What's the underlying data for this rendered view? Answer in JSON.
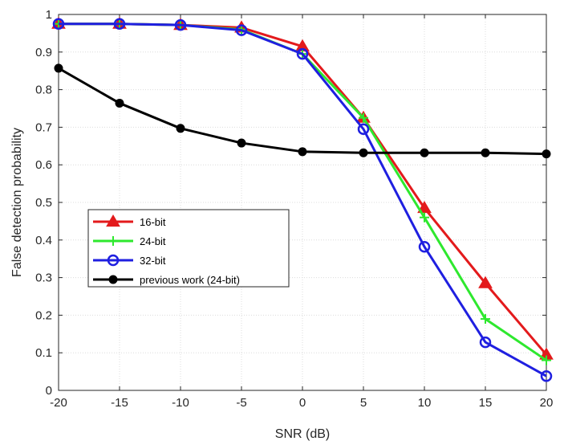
{
  "chart_data": {
    "type": "line",
    "title": "",
    "xlabel": "SNR (dB)",
    "ylabel": "False detection probability",
    "xlim": [
      -20,
      20
    ],
    "ylim": [
      0,
      1
    ],
    "x": [
      -20,
      -15,
      -10,
      -5,
      0,
      5,
      10,
      15,
      20
    ],
    "x_ticks": [
      "-20",
      "-15",
      "-10",
      "-5",
      "0",
      "5",
      "10",
      "15",
      "20"
    ],
    "y_ticks": [
      "0",
      "0.1",
      "0.2",
      "0.3",
      "0.4",
      "0.5",
      "0.6",
      "0.7",
      "0.8",
      "0.9",
      "1"
    ],
    "grid": true,
    "legend_position": "middle-left",
    "series": [
      {
        "name": "16-bit",
        "color": "#e31a1c",
        "marker": "triangle",
        "values": [
          0.975,
          0.975,
          0.972,
          0.965,
          0.915,
          0.725,
          0.485,
          0.285,
          0.095
        ]
      },
      {
        "name": "24-bit",
        "color": "#2ee82e",
        "marker": "plus",
        "values": [
          0.975,
          0.975,
          0.972,
          0.96,
          0.895,
          0.725,
          0.46,
          0.19,
          0.08
        ]
      },
      {
        "name": "32-bit",
        "color": "#1f1fe0",
        "marker": "circle",
        "values": [
          0.975,
          0.975,
          0.972,
          0.958,
          0.895,
          0.695,
          0.382,
          0.128,
          0.038
        ]
      },
      {
        "name": "previous work (24-bit)",
        "color": "#000000",
        "marker": "dot",
        "values": [
          0.857,
          0.764,
          0.697,
          0.658,
          0.635,
          0.632,
          0.632,
          0.632,
          0.629
        ]
      }
    ]
  }
}
